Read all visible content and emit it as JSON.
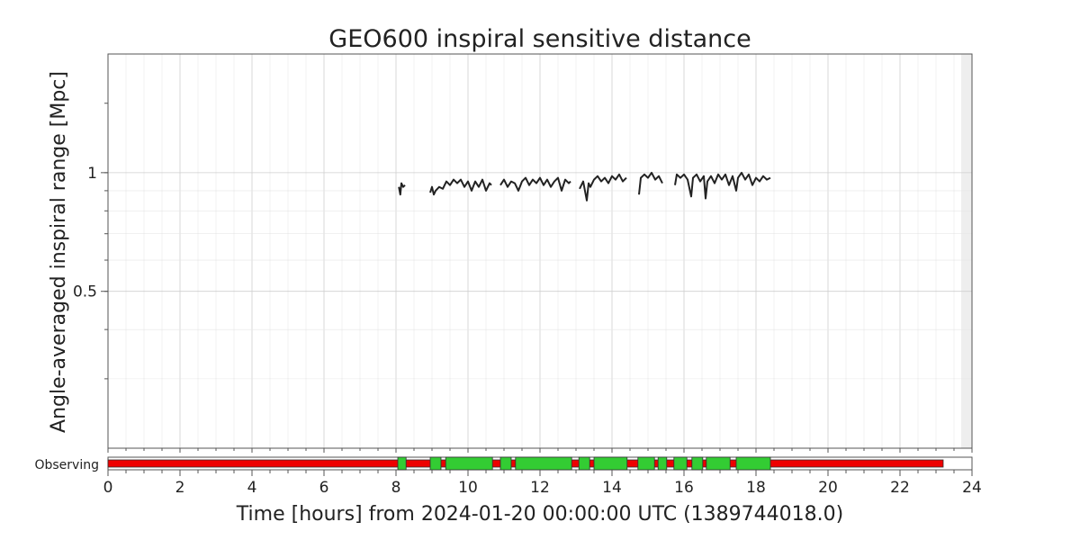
{
  "chart_data": {
    "type": "line",
    "title": "GEO600 inspiral sensitive distance",
    "xlabel": "Time [hours] from 2024-01-20 00:00:00 UTC (1389744018.0)",
    "ylabel": "Angle-averaged inspiral range [Mpc]",
    "xlim": [
      0,
      24
    ],
    "ylim": [
      0.2,
      2.0
    ],
    "yscale": "log",
    "grid": true,
    "x_ticks": [
      "0",
      "2",
      "4",
      "6",
      "8",
      "10",
      "12",
      "14",
      "16",
      "18",
      "20",
      "22",
      "24"
    ],
    "y_ticks": [
      {
        "value": 0.5,
        "label": "0.5"
      },
      {
        "value": 1,
        "label": "1"
      }
    ],
    "unavailable_after_hour": 23.7,
    "series": [
      {
        "color": "#222222",
        "segments": [
          [
            [
              8.08,
              0.92
            ],
            [
              8.12,
              0.88
            ],
            [
              8.15,
              0.94
            ],
            [
              8.2,
              0.92
            ],
            [
              8.25,
              0.93
            ]
          ],
          [
            [
              8.95,
              0.89
            ],
            [
              9.0,
              0.92
            ],
            [
              9.05,
              0.88
            ],
            [
              9.1,
              0.9
            ],
            [
              9.2,
              0.92
            ],
            [
              9.3,
              0.91
            ],
            [
              9.4,
              0.95
            ],
            [
              9.5,
              0.93
            ],
            [
              9.6,
              0.96
            ],
            [
              9.7,
              0.94
            ],
            [
              9.8,
              0.96
            ],
            [
              9.9,
              0.92
            ],
            [
              10.0,
              0.95
            ],
            [
              10.1,
              0.9
            ],
            [
              10.2,
              0.95
            ],
            [
              10.3,
              0.92
            ],
            [
              10.4,
              0.96
            ],
            [
              10.5,
              0.9
            ],
            [
              10.6,
              0.94
            ],
            [
              10.65,
              0.93
            ]
          ],
          [
            [
              10.9,
              0.93
            ],
            [
              11.0,
              0.96
            ],
            [
              11.1,
              0.92
            ],
            [
              11.2,
              0.95
            ],
            [
              11.3,
              0.94
            ],
            [
              11.4,
              0.9
            ],
            [
              11.5,
              0.95
            ],
            [
              11.6,
              0.97
            ],
            [
              11.7,
              0.93
            ],
            [
              11.8,
              0.96
            ],
            [
              11.9,
              0.94
            ],
            [
              12.0,
              0.97
            ],
            [
              12.1,
              0.93
            ],
            [
              12.2,
              0.96
            ],
            [
              12.3,
              0.92
            ],
            [
              12.4,
              0.95
            ],
            [
              12.5,
              0.97
            ],
            [
              12.6,
              0.9
            ],
            [
              12.7,
              0.96
            ],
            [
              12.8,
              0.94
            ],
            [
              12.85,
              0.95
            ]
          ],
          [
            [
              13.1,
              0.91
            ],
            [
              13.2,
              0.95
            ],
            [
              13.3,
              0.85
            ],
            [
              13.35,
              0.94
            ],
            [
              13.4,
              0.92
            ],
            [
              13.5,
              0.96
            ],
            [
              13.6,
              0.98
            ],
            [
              13.7,
              0.95
            ],
            [
              13.8,
              0.97
            ],
            [
              13.9,
              0.94
            ],
            [
              14.0,
              0.98
            ],
            [
              14.1,
              0.96
            ],
            [
              14.2,
              0.99
            ],
            [
              14.3,
              0.95
            ],
            [
              14.4,
              0.97
            ]
          ],
          [
            [
              14.75,
              0.88
            ],
            [
              14.8,
              0.97
            ],
            [
              14.9,
              0.99
            ],
            [
              15.0,
              0.97
            ],
            [
              15.1,
              1.0
            ],
            [
              15.2,
              0.96
            ],
            [
              15.3,
              0.98
            ],
            [
              15.4,
              0.94
            ]
          ],
          [
            [
              15.75,
              0.93
            ],
            [
              15.8,
              0.99
            ],
            [
              15.9,
              0.97
            ],
            [
              16.0,
              0.99
            ],
            [
              16.1,
              0.96
            ],
            [
              16.2,
              0.87
            ],
            [
              16.25,
              0.97
            ],
            [
              16.35,
              0.99
            ],
            [
              16.45,
              0.95
            ],
            [
              16.55,
              0.98
            ],
            [
              16.6,
              0.86
            ],
            [
              16.65,
              0.95
            ],
            [
              16.75,
              0.98
            ],
            [
              16.85,
              0.94
            ],
            [
              16.95,
              0.99
            ],
            [
              17.05,
              0.96
            ],
            [
              17.15,
              0.99
            ],
            [
              17.25,
              0.93
            ],
            [
              17.35,
              0.98
            ],
            [
              17.45,
              0.9
            ],
            [
              17.5,
              0.97
            ],
            [
              17.6,
              1.0
            ],
            [
              17.7,
              0.96
            ],
            [
              17.8,
              0.99
            ],
            [
              17.9,
              0.93
            ],
            [
              18.0,
              0.97
            ],
            [
              18.1,
              0.95
            ],
            [
              18.2,
              0.98
            ],
            [
              18.3,
              0.96
            ],
            [
              18.4,
              0.97
            ]
          ]
        ]
      }
    ],
    "state_bar": {
      "label": "Observing",
      "range": [
        0,
        23.2
      ],
      "off_color": "#ee0000",
      "on_color": "#33cc33",
      "on_segments": [
        [
          8.05,
          8.28
        ],
        [
          8.95,
          9.25
        ],
        [
          9.38,
          10.68
        ],
        [
          10.9,
          11.2
        ],
        [
          11.32,
          12.88
        ],
        [
          13.08,
          13.38
        ],
        [
          13.5,
          14.42
        ],
        [
          14.72,
          15.18
        ],
        [
          15.28,
          15.52
        ],
        [
          15.72,
          16.08
        ],
        [
          16.22,
          16.52
        ],
        [
          16.62,
          17.28
        ],
        [
          17.45,
          18.4
        ]
      ]
    }
  }
}
